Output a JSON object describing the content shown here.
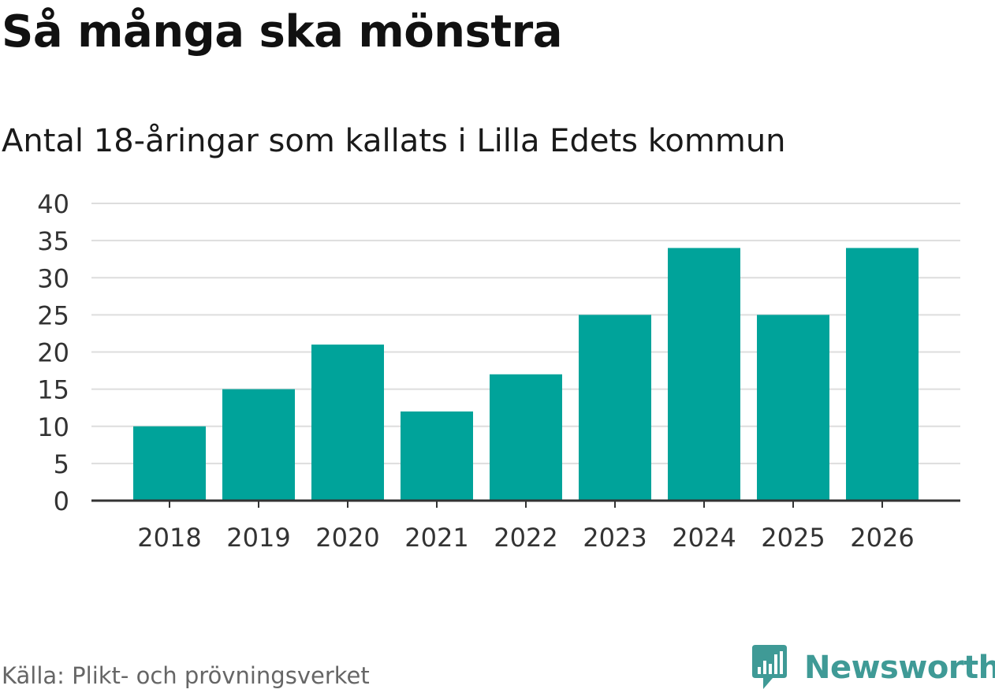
{
  "colors": {
    "bar": "#00a39a",
    "grid": "#dddddd",
    "axis": "#333333",
    "tick_text": "#333333",
    "logo": "#3f9a96"
  },
  "chart_data": {
    "type": "bar",
    "title": "Så många ska mönstra",
    "subtitle": "Antal 18-åringar som kallats i Lilla Edets kommun",
    "categories": [
      "2018",
      "2019",
      "2020",
      "2021",
      "2022",
      "2023",
      "2024",
      "2025",
      "2026"
    ],
    "values": [
      10,
      15,
      21,
      12,
      17,
      25,
      34,
      25,
      34
    ],
    "yticks": [
      0,
      5,
      10,
      15,
      20,
      25,
      30,
      35,
      40
    ],
    "ylim": [
      0,
      40
    ],
    "xlabel": "",
    "ylabel": "",
    "grid": true,
    "legend": "none"
  },
  "footer": {
    "source": "Källa: Plikt- och prövningsverket",
    "logo_text": "Newsworthy",
    "logo_icon": "newsworthy-bar-chart-icon"
  }
}
